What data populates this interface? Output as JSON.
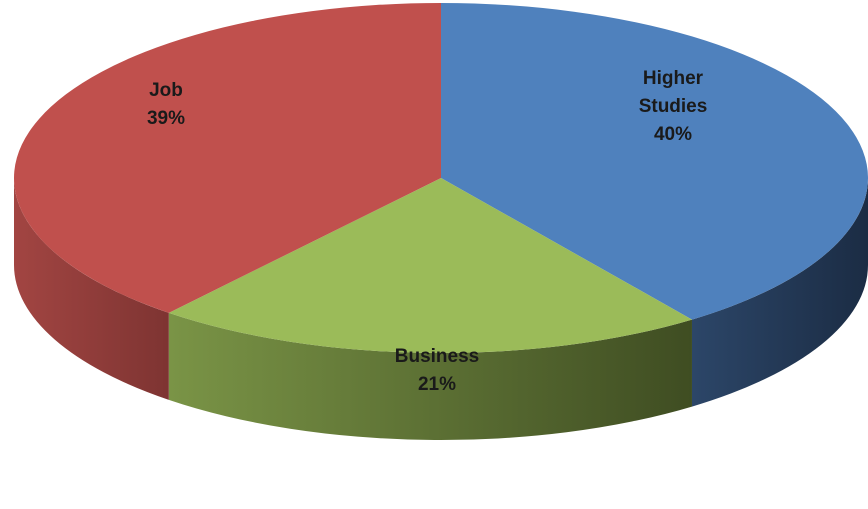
{
  "chart_data": {
    "type": "pie",
    "style": "3d",
    "title": "",
    "legend": "none",
    "slices": [
      {
        "label_lines": [
          "Higher",
          "Studies"
        ],
        "percent_text": "40%",
        "value": 40,
        "color": "#4F81BD"
      },
      {
        "label_lines": [
          "Business"
        ],
        "percent_text": "21%",
        "value": 21,
        "color": "#9BBB59"
      },
      {
        "label_lines": [
          "Job"
        ],
        "percent_text": "39%",
        "value": 39,
        "color": "#C0504D"
      }
    ]
  }
}
